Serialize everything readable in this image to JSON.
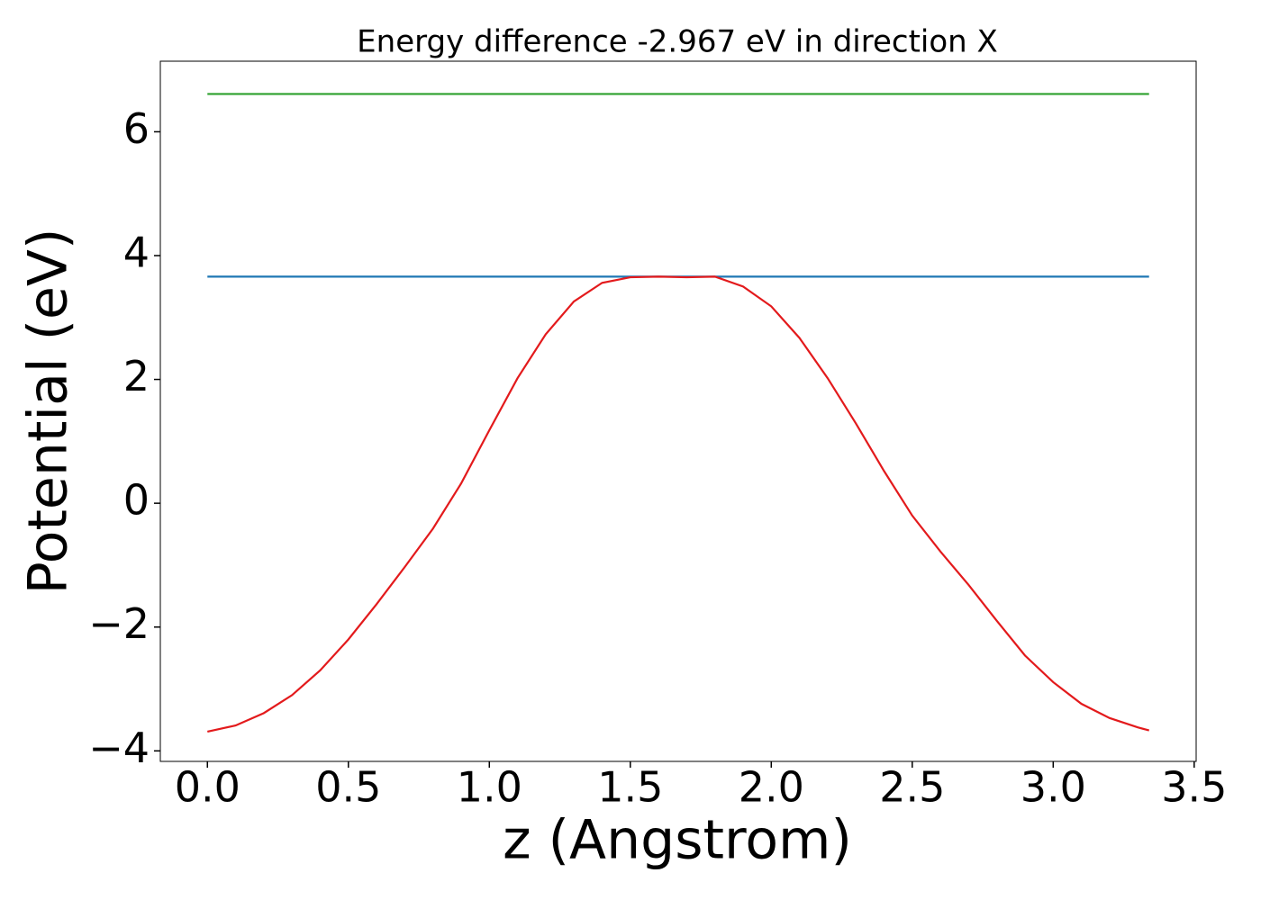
{
  "chart_data": {
    "type": "line",
    "title": "Energy difference -2.967 eV in direction X",
    "xlabel": "z (Angstrom)",
    "ylabel": "Potential (eV)",
    "xlim": [
      -0.167,
      3.507
    ],
    "ylim": [
      -4.17,
      7.14
    ],
    "xticks": [
      {
        "value": 0,
        "label": "0.0"
      },
      {
        "value": 0.5,
        "label": "0.5"
      },
      {
        "value": 1,
        "label": "1.0"
      },
      {
        "value": 1.5,
        "label": "1.5"
      },
      {
        "value": 2,
        "label": "2.0"
      },
      {
        "value": 2.5,
        "label": "2.5"
      },
      {
        "value": 3,
        "label": "3.0"
      },
      {
        "value": 3.5,
        "label": "3.5"
      }
    ],
    "yticks": [
      {
        "value": -4,
        "label": "−4"
      },
      {
        "value": -2,
        "label": "−2"
      },
      0,
      2,
      4,
      6
    ],
    "series": [
      {
        "color": "#2ca02c",
        "x": [
          0,
          3.34
        ],
        "values": [
          6.61,
          6.61
        ]
      },
      {
        "color": "#1f77b4",
        "x": [
          0,
          3.34
        ],
        "values": [
          3.66,
          3.66
        ]
      },
      {
        "color": "#e31a1c",
        "x": [
          0,
          0.1,
          0.2,
          0.3,
          0.4,
          0.5,
          0.6,
          0.7,
          0.8,
          0.9,
          1.0,
          1.1,
          1.2,
          1.3,
          1.4,
          1.5,
          1.6,
          1.7,
          1.8,
          1.9,
          2.0,
          2.1,
          2.2,
          2.3,
          2.4,
          2.5,
          2.6,
          2.7,
          2.8,
          2.9,
          3.0,
          3.1,
          3.2,
          3.3,
          3.34
        ],
        "values": [
          -3.69,
          -3.59,
          -3.39,
          -3.1,
          -2.7,
          -2.2,
          -1.63,
          -1.03,
          -0.41,
          0.32,
          1.18,
          2.02,
          2.73,
          3.26,
          3.56,
          3.65,
          3.66,
          3.65,
          3.66,
          3.5,
          3.18,
          2.67,
          2.02,
          1.29,
          0.52,
          -0.2,
          -0.78,
          -1.32,
          -1.9,
          -2.46,
          -2.89,
          -3.24,
          -3.47,
          -3.62,
          -3.67
        ]
      }
    ]
  }
}
